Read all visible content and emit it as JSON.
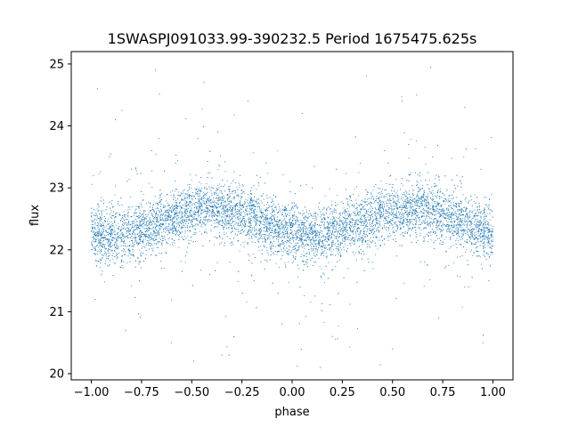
{
  "chart_data": {
    "type": "scatter",
    "title": "1SWASPJ091033.99-390232.5 Period 1675475.625s",
    "xlabel": "phase",
    "ylabel": "flux",
    "xlim": [
      -1.1,
      1.1
    ],
    "ylim": [
      19.9,
      25.2
    ],
    "xticks": [
      -1.0,
      -0.75,
      -0.5,
      -0.25,
      0.0,
      0.25,
      0.5,
      0.75,
      1.0
    ],
    "xtick_labels": [
      "−1.00",
      "−0.75",
      "−0.50",
      "−0.25",
      "0.00",
      "0.25",
      "0.50",
      "0.75",
      "1.00"
    ],
    "yticks": [
      20,
      21,
      22,
      23,
      24,
      25
    ],
    "ytick_labels": [
      "20",
      "21",
      "22",
      "23",
      "24",
      "25"
    ],
    "grid": false,
    "marker_color": "#1f77b4",
    "series": [
      {
        "x_range": [
          -1.0,
          1.0
        ],
        "y_range": [
          20.0,
          25.0
        ],
        "points": [
          [
            -1.0,
            22.3
          ],
          [
            -0.98,
            22.6
          ],
          [
            -0.96,
            22.5
          ],
          [
            -0.93,
            22.2
          ],
          [
            -0.9,
            22.4
          ],
          [
            -0.87,
            22.6
          ],
          [
            -0.84,
            22.5
          ],
          [
            -0.81,
            22.3
          ],
          [
            -0.78,
            22.4
          ],
          [
            -0.75,
            22.5
          ],
          [
            -0.72,
            22.3
          ],
          [
            -0.69,
            22.5
          ],
          [
            -0.66,
            22.6
          ],
          [
            -0.63,
            22.7
          ],
          [
            -0.6,
            22.6
          ],
          [
            -0.57,
            22.7
          ],
          [
            -0.54,
            22.8
          ],
          [
            -0.51,
            22.7
          ],
          [
            -0.48,
            22.6
          ],
          [
            -0.45,
            22.7
          ],
          [
            -0.42,
            22.8
          ],
          [
            -0.39,
            22.7
          ],
          [
            -0.36,
            22.8
          ],
          [
            -0.33,
            22.7
          ],
          [
            -0.3,
            22.6
          ],
          [
            -0.27,
            22.5
          ],
          [
            -0.24,
            22.4
          ],
          [
            -0.21,
            22.5
          ],
          [
            -0.18,
            22.4
          ],
          [
            -0.15,
            22.6
          ],
          [
            -0.12,
            22.5
          ],
          [
            -0.09,
            22.4
          ],
          [
            -0.06,
            22.3
          ],
          [
            -0.03,
            22.4
          ],
          [
            0.0,
            22.3
          ],
          [
            0.03,
            22.2
          ],
          [
            0.06,
            22.4
          ],
          [
            0.09,
            22.3
          ],
          [
            0.12,
            22.4
          ],
          [
            0.15,
            22.5
          ],
          [
            0.18,
            22.3
          ],
          [
            0.21,
            22.5
          ],
          [
            0.24,
            22.4
          ],
          [
            0.27,
            22.5
          ],
          [
            0.3,
            22.4
          ],
          [
            0.33,
            22.6
          ],
          [
            0.36,
            22.5
          ],
          [
            0.39,
            22.6
          ],
          [
            0.42,
            22.5
          ],
          [
            0.45,
            22.7
          ],
          [
            0.48,
            22.6
          ],
          [
            0.51,
            22.7
          ],
          [
            0.54,
            22.6
          ],
          [
            0.57,
            22.7
          ],
          [
            0.6,
            22.8
          ],
          [
            0.63,
            22.7
          ],
          [
            0.66,
            22.8
          ],
          [
            0.69,
            22.6
          ],
          [
            0.72,
            22.7
          ],
          [
            0.75,
            22.6
          ],
          [
            0.78,
            22.5
          ],
          [
            0.81,
            22.4
          ],
          [
            0.84,
            22.5
          ],
          [
            0.87,
            22.4
          ],
          [
            0.9,
            22.3
          ],
          [
            0.93,
            22.4
          ],
          [
            0.96,
            22.5
          ],
          [
            1.0,
            22.3
          ],
          [
            -0.99,
            23.2
          ],
          [
            -0.95,
            21.6
          ],
          [
            -0.91,
            23.5
          ],
          [
            -0.85,
            21.8
          ],
          [
            -0.8,
            23.3
          ],
          [
            -0.76,
            21.5
          ],
          [
            -0.7,
            23.6
          ],
          [
            -0.65,
            21.7
          ],
          [
            -0.58,
            23.4
          ],
          [
            -0.53,
            21.9
          ],
          [
            -0.47,
            23.8
          ],
          [
            -0.41,
            21.6
          ],
          [
            -0.37,
            23.9
          ],
          [
            -0.31,
            21.8
          ],
          [
            -0.26,
            23.2
          ],
          [
            -0.19,
            21.5
          ],
          [
            -0.13,
            23.4
          ],
          [
            -0.07,
            21.3
          ],
          [
            -0.01,
            23.1
          ],
          [
            0.04,
            21.4
          ],
          [
            0.1,
            23.0
          ],
          [
            0.16,
            21.6
          ],
          [
            0.22,
            23.3
          ],
          [
            0.28,
            21.7
          ],
          [
            0.34,
            23.4
          ],
          [
            0.4,
            21.8
          ],
          [
            0.46,
            23.6
          ],
          [
            0.52,
            21.9
          ],
          [
            0.58,
            23.7
          ],
          [
            0.64,
            21.8
          ],
          [
            0.7,
            23.5
          ],
          [
            0.76,
            21.7
          ],
          [
            0.82,
            23.2
          ],
          [
            0.88,
            21.4
          ],
          [
            0.94,
            23.3
          ],
          [
            0.98,
            21.5
          ],
          [
            -0.97,
            24.6
          ],
          [
            -0.83,
            20.7
          ],
          [
            -0.68,
            24.9
          ],
          [
            -0.6,
            20.5
          ],
          [
            -0.44,
            24.7
          ],
          [
            -0.35,
            20.3
          ],
          [
            -0.22,
            24.4
          ],
          [
            -0.05,
            20.8
          ],
          [
            0.05,
            24.2
          ],
          [
            0.2,
            20.6
          ],
          [
            0.37,
            24.8
          ],
          [
            0.5,
            20.4
          ],
          [
            0.62,
            24.5
          ],
          [
            0.73,
            20.9
          ],
          [
            0.86,
            24.3
          ],
          [
            0.95,
            20.5
          ],
          [
            -0.88,
            24.1
          ],
          [
            -0.49,
            20.2
          ],
          [
            0.14,
            20.1
          ],
          [
            0.69,
            24.95
          ]
        ]
      }
    ]
  }
}
